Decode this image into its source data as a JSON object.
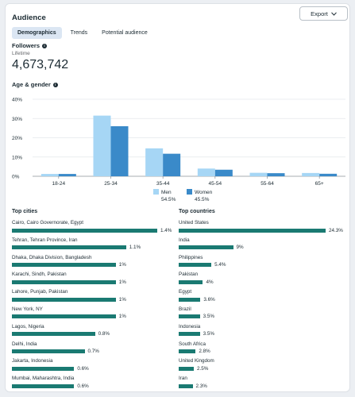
{
  "header": {
    "title": "Audience",
    "export_label": "Export"
  },
  "tabs": [
    {
      "label": "Demographics",
      "active": true
    },
    {
      "label": "Trends",
      "active": false
    },
    {
      "label": "Potential audience",
      "active": false
    }
  ],
  "followers": {
    "label": "Followers",
    "sublabel": "Lifetime",
    "value": "4,673,742"
  },
  "age_gender": {
    "label": "Age & gender"
  },
  "chart_data": {
    "type": "bar",
    "categories": [
      "18-24",
      "25-34",
      "35-44",
      "45-54",
      "55-64",
      "65+"
    ],
    "series": [
      {
        "name": "Men",
        "values": [
          1.2,
          31.5,
          14.5,
          4.0,
          1.8,
          1.7
        ],
        "color": "#a6d6f5"
      },
      {
        "name": "Women",
        "values": [
          1.2,
          26.0,
          11.7,
          3.4,
          1.6,
          1.3
        ],
        "color": "#3a8ac9"
      }
    ],
    "yticks": [
      "0%",
      "10%",
      "20%",
      "30%",
      "40%"
    ],
    "ylim": [
      0,
      40
    ],
    "legend": [
      {
        "name": "Men",
        "percent": "54.5%"
      },
      {
        "name": "Women",
        "percent": "45.5%"
      }
    ]
  },
  "top_cities": {
    "title": "Top cities",
    "items": [
      {
        "label": "Cairo, Cairo Governorate, Egypt",
        "value": "1.4%",
        "num": 1.4
      },
      {
        "label": "Tehran, Tehran Province, Iran",
        "value": "1.1%",
        "num": 1.1
      },
      {
        "label": "Dhaka, Dhaka Division, Bangladesh",
        "value": "1%",
        "num": 1.0
      },
      {
        "label": "Karachi, Sindh, Pakistan",
        "value": "1%",
        "num": 1.0
      },
      {
        "label": "Lahore, Punjab, Pakistan",
        "value": "1%",
        "num": 1.0
      },
      {
        "label": "New York, NY",
        "value": "1%",
        "num": 1.0
      },
      {
        "label": "Lagos, Nigeria",
        "value": "0.8%",
        "num": 0.8
      },
      {
        "label": "Delhi, India",
        "value": "0.7%",
        "num": 0.7
      },
      {
        "label": "Jakarta, Indonesia",
        "value": "0.6%",
        "num": 0.6
      },
      {
        "label": "Mumbai, Maharashtra, India",
        "value": "0.6%",
        "num": 0.6
      }
    ]
  },
  "top_countries": {
    "title": "Top countries",
    "items": [
      {
        "label": "United States",
        "value": "24.3%",
        "num": 24.3
      },
      {
        "label": "India",
        "value": "9%",
        "num": 9.0
      },
      {
        "label": "Philippines",
        "value": "5.4%",
        "num": 5.4
      },
      {
        "label": "Pakistan",
        "value": "4%",
        "num": 4.0
      },
      {
        "label": "Egypt",
        "value": "3.6%",
        "num": 3.6
      },
      {
        "label": "Brazil",
        "value": "3.5%",
        "num": 3.5
      },
      {
        "label": "Indonesia",
        "value": "3.5%",
        "num": 3.5
      },
      {
        "label": "South Africa",
        "value": "2.8%",
        "num": 2.8
      },
      {
        "label": "United Kingdom",
        "value": "2.5%",
        "num": 2.5
      },
      {
        "label": "Iran",
        "value": "2.3%",
        "num": 2.3
      }
    ]
  },
  "colors": {
    "accent": "#1a7a72",
    "tab_active_bg": "#dbe6f3"
  },
  "icons": {
    "export": "chevron-down-icon",
    "info": "info-icon"
  }
}
